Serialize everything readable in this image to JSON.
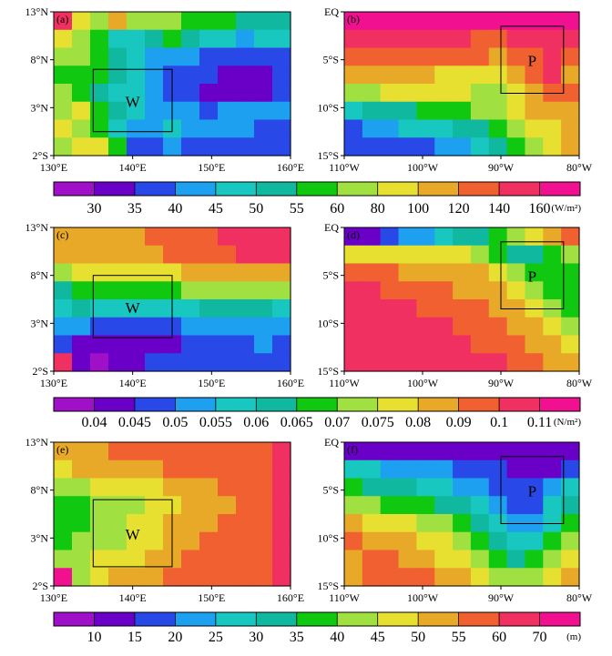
{
  "colorbar_colors": [
    "#a010c8",
    "#6a00c8",
    "#2848e8",
    "#1ea0f0",
    "#18c8c0",
    "#10b8a0",
    "#10c810",
    "#a0e040",
    "#e8e030",
    "#e8a828",
    "#f06030",
    "#f03060",
    "#f01090"
  ],
  "colorbars": [
    {
      "labels": [
        "30",
        "35",
        "40",
        "45",
        "50",
        "55",
        "60",
        "80",
        "100",
        "120",
        "140",
        "160"
      ],
      "unit": "(W/m²)"
    },
    {
      "labels": [
        "0.04",
        "0.045",
        "0.05",
        "0.055",
        "0.06",
        "0.065",
        "0.07",
        "0.075",
        "0.08",
        "0.09",
        "0.1",
        "0.11"
      ],
      "unit": "(N/m²)"
    },
    {
      "labels": [
        "10",
        "15",
        "20",
        "25",
        "30",
        "35",
        "40",
        "45",
        "50",
        "55",
        "60",
        "70"
      ],
      "unit": "(m)"
    }
  ],
  "panels": [
    {
      "tag": "(a)",
      "region": "W",
      "xticks": [
        "130°E",
        "140°E",
        "150°E",
        "160°E"
      ],
      "yticks": [
        "13°N",
        "8°N",
        "3°N",
        "2°S"
      ]
    },
    {
      "tag": "(b)",
      "region": "P",
      "xticks": [
        "110°W",
        "100°W",
        "90°W",
        "80°W"
      ],
      "yticks": [
        "EQ",
        "5°S",
        "10°S",
        "15°S"
      ]
    },
    {
      "tag": "(c)",
      "region": "W",
      "xticks": [
        "130°E",
        "140°E",
        "150°E",
        "160°E"
      ],
      "yticks": [
        "13°N",
        "8°N",
        "3°N",
        "2°S"
      ]
    },
    {
      "tag": "(d)",
      "region": "P",
      "xticks": [
        "110°W",
        "100°W",
        "90°W",
        "80°W"
      ],
      "yticks": [
        "EQ",
        "5°S",
        "10°S",
        "15°S"
      ]
    },
    {
      "tag": "(e)",
      "region": "W",
      "xticks": [
        "130°E",
        "140°E",
        "150°E",
        "160°E"
      ],
      "yticks": [
        "13°N",
        "8°N",
        "3°N",
        "2°S"
      ]
    },
    {
      "tag": "(f)",
      "region": "P",
      "xticks": [
        "110°W",
        "100°W",
        "90°W",
        "80°W"
      ],
      "yticks": [
        "EQ",
        "5°S",
        "10°S",
        "15°S"
      ]
    }
  ],
  "chart_data": [
    {
      "type": "heatmap",
      "panel": "(a)",
      "field": "W/m²",
      "xlim": [
        130,
        160
      ],
      "ylim": [
        -2,
        13
      ],
      "box": {
        "lon": [
          135,
          145
        ],
        "lat": [
          0.5,
          7
        ],
        "label": "W"
      },
      "grid": [
        [
          11,
          8,
          7,
          9,
          7,
          7,
          7,
          6,
          6,
          6,
          5,
          5,
          5
        ],
        [
          8,
          7,
          6,
          4,
          4,
          5,
          6,
          5,
          4,
          4,
          3,
          4,
          4
        ],
        [
          7,
          7,
          6,
          5,
          4,
          3,
          3,
          3,
          2,
          2,
          2,
          2,
          2
        ],
        [
          6,
          6,
          6,
          5,
          4,
          3,
          2,
          2,
          2,
          1,
          1,
          1,
          2
        ],
        [
          7,
          6,
          5,
          4,
          4,
          3,
          2,
          2,
          1,
          1,
          1,
          1,
          2
        ],
        [
          7,
          8,
          6,
          5,
          4,
          3,
          3,
          3,
          2,
          3,
          3,
          3,
          3
        ],
        [
          8,
          7,
          6,
          4,
          3,
          3,
          4,
          3,
          3,
          3,
          3,
          2,
          2
        ],
        [
          7,
          8,
          8,
          6,
          2,
          2,
          3,
          2,
          2,
          2,
          2,
          2,
          2
        ]
      ]
    },
    {
      "type": "heatmap",
      "panel": "(b)",
      "field": "W/m²",
      "xlim": [
        -110,
        -80
      ],
      "ylim": [
        -15,
        0
      ],
      "box": {
        "lon": [
          -90,
          -82
        ],
        "lat": [
          -8.5,
          -1.5
        ],
        "label": "P"
      },
      "grid": [
        [
          12,
          12,
          12,
          12,
          12,
          12,
          12,
          12,
          12,
          12,
          12,
          12,
          12
        ],
        [
          11,
          11,
          11,
          11,
          11,
          11,
          11,
          10,
          10,
          11,
          11,
          11,
          11
        ],
        [
          10,
          10,
          10,
          10,
          10,
          10,
          10,
          10,
          9,
          10,
          10,
          11,
          10
        ],
        [
          9,
          9,
          9,
          9,
          9,
          8,
          8,
          8,
          8,
          9,
          10,
          11,
          9
        ],
        [
          7,
          7,
          8,
          8,
          8,
          8,
          8,
          7,
          7,
          8,
          9,
          10,
          10
        ],
        [
          4,
          5,
          5,
          5,
          6,
          6,
          6,
          7,
          7,
          8,
          9,
          9,
          9
        ],
        [
          2,
          3,
          3,
          4,
          4,
          4,
          5,
          5,
          6,
          7,
          8,
          8,
          9
        ],
        [
          2,
          2,
          2,
          2,
          2,
          3,
          3,
          4,
          5,
          6,
          7,
          8,
          9
        ]
      ]
    },
    {
      "type": "heatmap",
      "panel": "(c)",
      "field": "N/m²",
      "xlim": [
        130,
        160
      ],
      "ylim": [
        -2,
        13
      ],
      "box": {
        "lon": [
          135,
          145
        ],
        "lat": [
          1.5,
          8
        ],
        "label": "W"
      },
      "grid": [
        [
          9,
          9,
          9,
          9,
          9,
          10,
          10,
          10,
          10,
          11,
          11,
          11,
          11
        ],
        [
          9,
          9,
          9,
          9,
          9,
          9,
          10,
          10,
          10,
          10,
          11,
          11,
          11
        ],
        [
          7,
          8,
          8,
          8,
          8,
          8,
          8,
          9,
          9,
          9,
          9,
          9,
          9
        ],
        [
          5,
          6,
          6,
          6,
          6,
          6,
          6,
          7,
          7,
          7,
          7,
          7,
          7
        ],
        [
          4,
          5,
          4,
          4,
          4,
          4,
          4,
          4,
          5,
          5,
          5,
          5,
          4
        ],
        [
          3,
          3,
          2,
          2,
          2,
          2,
          2,
          3,
          3,
          3,
          3,
          3,
          3
        ],
        [
          2,
          1,
          1,
          1,
          1,
          1,
          1,
          2,
          2,
          2,
          2,
          3,
          2
        ],
        [
          11,
          1,
          0,
          1,
          1,
          2,
          2,
          2,
          2,
          2,
          2,
          2,
          2
        ]
      ]
    },
    {
      "type": "heatmap",
      "panel": "(d)",
      "field": "N/m²",
      "xlim": [
        -110,
        -80
      ],
      "ylim": [
        -15,
        0
      ],
      "box": {
        "lon": [
          -90,
          -82
        ],
        "lat": [
          -8.5,
          -1.5
        ],
        "label": "P"
      },
      "grid": [
        [
          1,
          1,
          2,
          3,
          3,
          4,
          5,
          5,
          6,
          7,
          8,
          9,
          10
        ],
        [
          8,
          8,
          8,
          8,
          8,
          8,
          8,
          7,
          6,
          5,
          5,
          6,
          7
        ],
        [
          10,
          10,
          10,
          9,
          9,
          9,
          9,
          9,
          8,
          7,
          6,
          6,
          6
        ],
        [
          11,
          11,
          10,
          10,
          10,
          10,
          9,
          9,
          9,
          8,
          7,
          6,
          6
        ],
        [
          11,
          11,
          11,
          11,
          10,
          10,
          10,
          10,
          9,
          9,
          8,
          7,
          6
        ],
        [
          11,
          11,
          11,
          11,
          11,
          11,
          10,
          10,
          10,
          9,
          9,
          8,
          7
        ],
        [
          11,
          11,
          11,
          11,
          11,
          11,
          11,
          10,
          10,
          10,
          9,
          9,
          8
        ],
        [
          11,
          11,
          11,
          11,
          11,
          11,
          11,
          11,
          11,
          10,
          10,
          9,
          9
        ]
      ]
    },
    {
      "type": "heatmap",
      "panel": "(e)",
      "field": "m",
      "xlim": [
        130,
        160
      ],
      "ylim": [
        -2,
        13
      ],
      "box": {
        "lon": [
          135,
          145
        ],
        "lat": [
          0,
          7
        ],
        "label": "W"
      },
      "grid": [
        [
          9,
          9,
          9,
          10,
          10,
          10,
          10,
          10,
          10,
          10,
          10,
          10,
          11
        ],
        [
          8,
          9,
          9,
          9,
          9,
          9,
          10,
          10,
          10,
          10,
          10,
          10,
          11
        ],
        [
          7,
          7,
          8,
          8,
          8,
          8,
          9,
          9,
          9,
          10,
          10,
          10,
          11
        ],
        [
          6,
          6,
          7,
          7,
          7,
          8,
          8,
          9,
          9,
          9,
          10,
          10,
          11
        ],
        [
          6,
          6,
          7,
          7,
          8,
          8,
          9,
          9,
          9,
          10,
          10,
          10,
          11
        ],
        [
          6,
          7,
          7,
          7,
          8,
          8,
          9,
          9,
          10,
          10,
          10,
          10,
          11
        ],
        [
          7,
          7,
          8,
          8,
          8,
          9,
          9,
          10,
          10,
          10,
          10,
          10,
          11
        ],
        [
          12,
          7,
          8,
          9,
          9,
          9,
          10,
          10,
          10,
          10,
          10,
          10,
          11
        ]
      ]
    },
    {
      "type": "heatmap",
      "panel": "(f)",
      "field": "m",
      "xlim": [
        -110,
        -80
      ],
      "ylim": [
        -15,
        0
      ],
      "box": {
        "lon": [
          -90,
          -82
        ],
        "lat": [
          -8.5,
          -1.5
        ],
        "label": "P"
      },
      "grid": [
        [
          1,
          1,
          1,
          1,
          1,
          1,
          1,
          1,
          1,
          1,
          1,
          1,
          1
        ],
        [
          4,
          4,
          3,
          3,
          3,
          3,
          2,
          2,
          2,
          1,
          1,
          1,
          2
        ],
        [
          6,
          5,
          5,
          5,
          4,
          4,
          3,
          3,
          2,
          2,
          2,
          3,
          4
        ],
        [
          7,
          7,
          6,
          6,
          6,
          5,
          5,
          4,
          3,
          2,
          2,
          4,
          5
        ],
        [
          9,
          8,
          8,
          8,
          7,
          7,
          6,
          5,
          4,
          3,
          3,
          4,
          6
        ],
        [
          10,
          9,
          9,
          9,
          8,
          8,
          7,
          6,
          5,
          4,
          4,
          6,
          7
        ],
        [
          9,
          10,
          10,
          9,
          9,
          8,
          8,
          7,
          6,
          5,
          6,
          7,
          8
        ],
        [
          9,
          10,
          10,
          10,
          10,
          9,
          9,
          8,
          7,
          7,
          7,
          8,
          9
        ]
      ]
    }
  ]
}
